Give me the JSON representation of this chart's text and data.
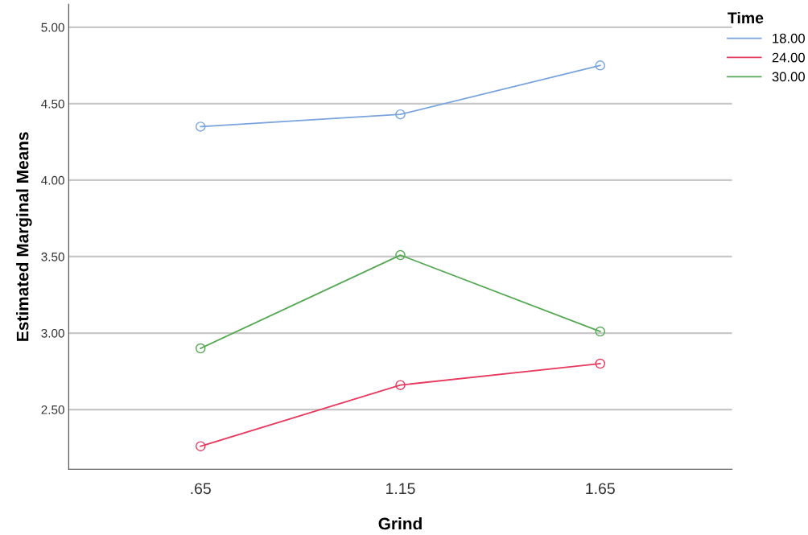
{
  "chart_data": {
    "type": "line",
    "xlabel": "Grind",
    "ylabel": "Estimated Marginal Means",
    "legend_title": "Time",
    "x": [
      0.65,
      1.15,
      1.65
    ],
    "xlim": [
      0.32,
      1.98
    ],
    "xticks": [
      {
        "value": 0.65,
        "label": ".65"
      },
      {
        "value": 1.15,
        "label": "1.15"
      },
      {
        "value": 1.65,
        "label": "1.65"
      }
    ],
    "series": [
      {
        "name": "18.00",
        "color": "#79a3dc",
        "values": [
          4.35,
          4.43,
          4.75
        ]
      },
      {
        "name": "24.00",
        "color": "#e8395e",
        "values": [
          2.26,
          2.66,
          2.8
        ]
      },
      {
        "name": "30.00",
        "color": "#55a853",
        "values": [
          2.9,
          3.51,
          3.01
        ]
      }
    ],
    "ylim": [
      2.11,
      5.15
    ],
    "yticks": [
      {
        "value": 2.5,
        "label": "2.50"
      },
      {
        "value": 3,
        "label": "3.00"
      },
      {
        "value": 3.5,
        "label": "3.50"
      },
      {
        "value": 4,
        "label": "4.00"
      },
      {
        "value": 4.5,
        "label": "4.50"
      },
      {
        "value": 5,
        "label": "5.00"
      }
    ],
    "grid": "y",
    "legend": "top right",
    "marker": "circle",
    "line_style": "solid"
  }
}
